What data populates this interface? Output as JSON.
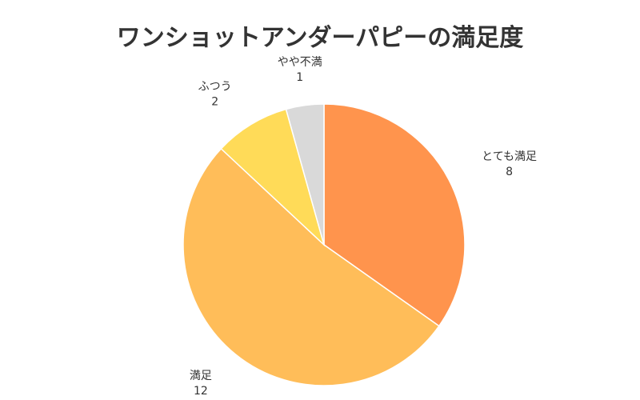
{
  "chart_data": {
    "type": "pie",
    "title": "ワンショットアンダーパピーの満足度",
    "slices": [
      {
        "label": "とても満足",
        "value": 8,
        "color": "#FF944D"
      },
      {
        "label": "満足",
        "value": 12,
        "color": "#FFBD59"
      },
      {
        "label": "ふつう",
        "value": 2,
        "color": "#FFDB58"
      },
      {
        "label": "やや不満",
        "value": 1,
        "color": "#D9D9D9"
      }
    ],
    "start_angle": "12 o'clock",
    "direction": "clockwise",
    "legend": "none"
  }
}
